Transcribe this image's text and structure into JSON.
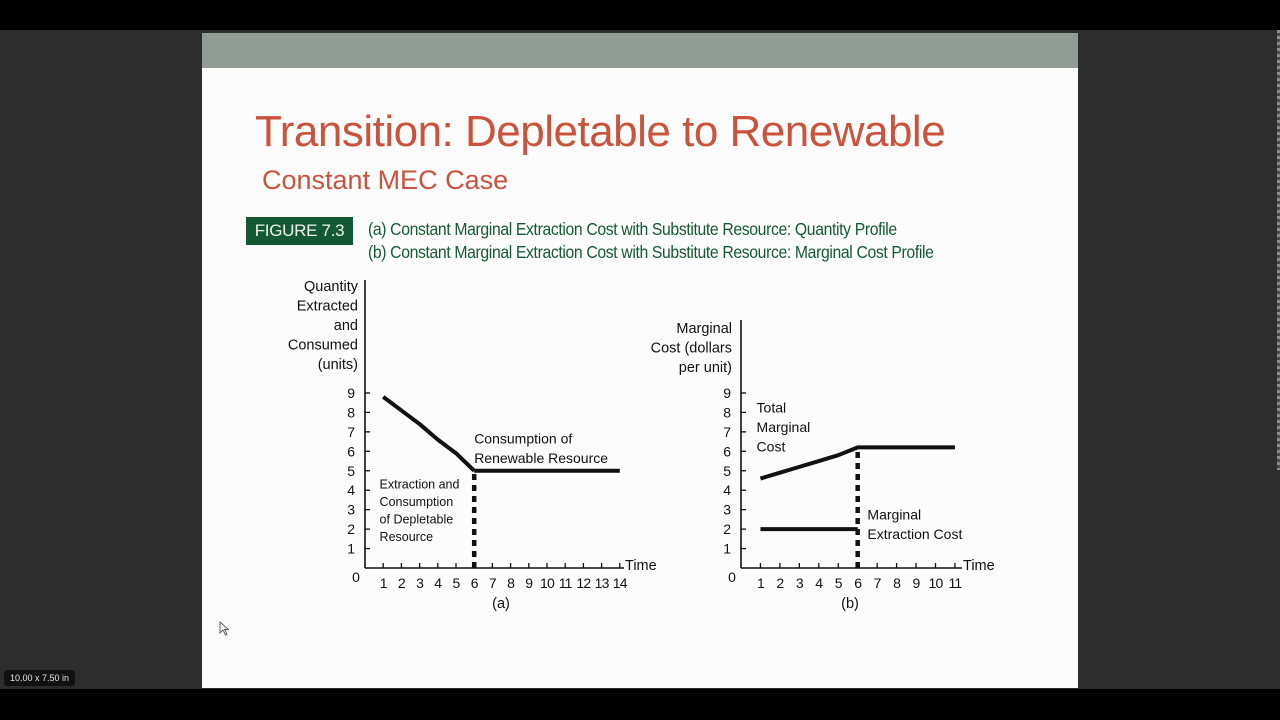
{
  "slide": {
    "title": "Transition: Depletable to Renewable",
    "subtitle": "Constant MEC Case",
    "colors": {
      "title": "#c9533c",
      "header_bar": "#919c94",
      "figure_green": "#135a34",
      "background": "#fdfcfc"
    },
    "figure": {
      "label": "FIGURE 7.3",
      "caption_a": "(a) Constant Marginal Extraction Cost with Substitute Resource: Quantity Profile",
      "caption_b": "(b) Constant Marginal Extraction Cost with Substitute Resource: Marginal Cost Profile"
    }
  },
  "app": {
    "page_size_badge": "10.00 x 7.50 in"
  },
  "chart_data": [
    {
      "type": "line",
      "panel_label": "(a)",
      "title": "Constant Marginal Extraction Cost with Substitute Resource: Quantity Profile",
      "ylabel": [
        "Quantity",
        "Extracted",
        "and",
        "Consumed",
        "(units)"
      ],
      "xlabel": "Time",
      "x_ticks": [
        1,
        2,
        3,
        4,
        5,
        6,
        7,
        8,
        9,
        10,
        11,
        12,
        13,
        14
      ],
      "y_ticks": [
        1,
        2,
        3,
        4,
        5,
        6,
        7,
        8,
        9
      ],
      "origin_label": "0",
      "xlim": [
        0,
        14
      ],
      "ylim": [
        0,
        9
      ],
      "grid": false,
      "series": [
        {
          "name": "Extraction and Consumption of Depletable Resource",
          "x": [
            1,
            2,
            3,
            4,
            5,
            6
          ],
          "y": [
            8.8,
            8.1,
            7.4,
            6.6,
            5.9,
            5.0
          ]
        },
        {
          "name": "Consumption of Renewable Resource",
          "x": [
            6,
            14
          ],
          "y": [
            5.0,
            5.0
          ]
        }
      ],
      "vertical_dashed_line": {
        "x": 6,
        "from": 0,
        "to": 5
      },
      "annotations": [
        {
          "text": [
            "Consumption of",
            "Renewable Resource"
          ],
          "x": 6,
          "y": 6.4
        },
        {
          "text": [
            "Extraction and",
            "Consumption",
            "of Depletable",
            "Resource"
          ],
          "x": 0.8,
          "y": 4.1
        }
      ]
    },
    {
      "type": "line",
      "panel_label": "(b)",
      "title": "Constant Marginal Extraction Cost with Substitute Resource: Marginal Cost Profile",
      "ylabel": [
        "Marginal",
        "Cost (dollars",
        "per unit)"
      ],
      "xlabel": "Time",
      "x_ticks": [
        1,
        2,
        3,
        4,
        5,
        6,
        7,
        8,
        9,
        10,
        11
      ],
      "y_ticks": [
        1,
        2,
        3,
        4,
        5,
        6,
        7,
        8,
        9
      ],
      "origin_label": "0",
      "xlim": [
        0,
        11
      ],
      "ylim": [
        0,
        9
      ],
      "grid": false,
      "series": [
        {
          "name": "Total Marginal Cost",
          "x": [
            1,
            2,
            3,
            4,
            5,
            6,
            11
          ],
          "y": [
            4.6,
            4.9,
            5.2,
            5.5,
            5.8,
            6.2,
            6.2
          ]
        },
        {
          "name": "Marginal Extraction Cost",
          "x": [
            1,
            6
          ],
          "y": [
            2.0,
            2.0
          ]
        }
      ],
      "vertical_dashed_line": {
        "x": 6,
        "from": 0,
        "to": 6.2
      },
      "annotations": [
        {
          "text": [
            "Total",
            "Marginal",
            "Cost"
          ],
          "x": 0.8,
          "y": 8.0
        },
        {
          "text": [
            "Marginal",
            "Extraction Cost"
          ],
          "x": 6.5,
          "y": 2.5
        }
      ]
    }
  ]
}
